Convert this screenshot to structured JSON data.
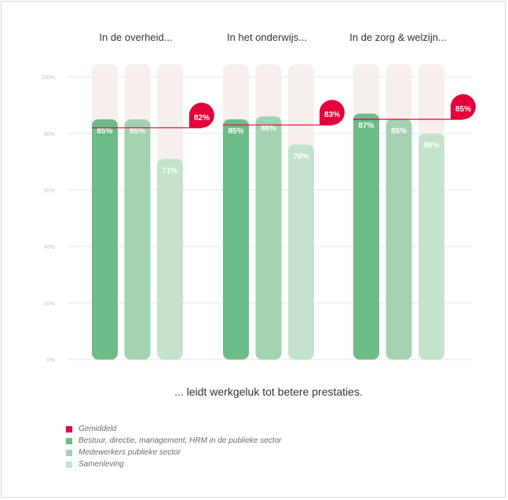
{
  "chart_data": {
    "type": "bar",
    "ytick_labels": [
      "0%",
      "20%",
      "40%",
      "60%",
      "80%",
      "100%"
    ],
    "ytick_values": [
      0,
      20,
      40,
      60,
      80,
      100
    ],
    "ylim": [
      0,
      100
    ],
    "grid": true,
    "xlabel": "... leidt werkgeluk tot betere prestaties.",
    "categories": [
      "In de overheid...",
      "In het onderwijs...",
      "In de zorg & welzijn..."
    ],
    "series": [
      {
        "name": "Bestuur, directie, management, HRM in de publieke sector",
        "values": [
          85,
          85,
          87
        ],
        "labels": [
          "85%",
          "85%",
          "87%"
        ],
        "color": "#6dbb87"
      },
      {
        "name": "Medewerkers publieke sector",
        "values": [
          85,
          86,
          85
        ],
        "labels": [
          "85%",
          "86%",
          "85%"
        ],
        "color": "#a3d2b0"
      },
      {
        "name": "Samenleving",
        "values": [
          71,
          76,
          80
        ],
        "labels": [
          "71%",
          "76%",
          "80%"
        ],
        "color": "#c4e3cc"
      }
    ],
    "average": {
      "name": "Gemiddeld",
      "values": [
        82,
        83,
        85
      ],
      "labels": [
        "82%",
        "83%",
        "85%"
      ],
      "color": "#e4003a"
    },
    "legend_position": "bottom-left",
    "background_bar_color": "#f6efec"
  }
}
